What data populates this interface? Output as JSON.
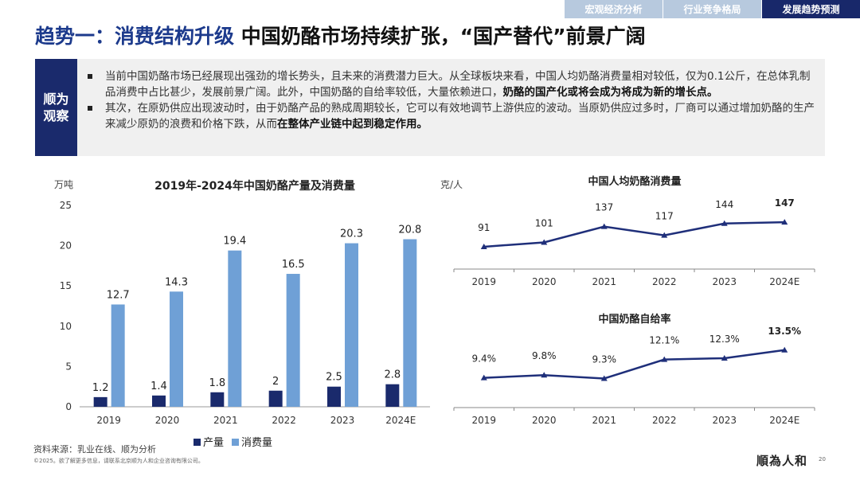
{
  "tabs": [
    {
      "label": "宏观经济分析",
      "active": false
    },
    {
      "label": "行业竞争格局",
      "active": false
    },
    {
      "label": "发展趋势预测",
      "active": true
    }
  ],
  "title": {
    "part1": "趋势一：消费结构升级",
    "part2": "中国奶酪市场持续扩张，“国产替代”前景广阔"
  },
  "observation": {
    "label": "顺为观察",
    "bullets": [
      {
        "text": "当前中国奶酪市场已经展现出强劲的增长势头，且未来的消费潜力巨大。从全球板块来看，中国人均奶酪消费量相对较低，仅为0.1公斤，在总体乳制品消费中占比甚少，发展前景广阔。此外，中国奶酪的自给率较低，大量依赖进口，",
        "bold": "奶酪的国产化或将会成为将成为新的增长点。"
      },
      {
        "text": "其次，在原奶供应出现波动时，由于奶酪产品的熟成周期较长，它可以有效地调节上游供应的波动。当原奶供应过多时，厂商可以通过增加奶酪的生产来减少原奶的浪费和价格下跌，从而",
        "bold": "在整体产业链中起到稳定作用。"
      }
    ]
  },
  "colors": {
    "navy": "#1a2a6c",
    "light_blue": "#6fa0d6",
    "line": "#1f2f7a"
  },
  "chart_data": [
    {
      "type": "bar",
      "title": "2019年-2024年中国奶酪产量及消费量",
      "ylabel": "万吨",
      "ylim": [
        0,
        25
      ],
      "yticks": [
        0,
        5,
        10,
        15,
        20,
        25
      ],
      "categories": [
        "2019",
        "2020",
        "2021",
        "2022",
        "2023",
        "2024E"
      ],
      "series": [
        {
          "name": "产量",
          "values": [
            1.2,
            1.4,
            1.8,
            2,
            2.5,
            2.8
          ],
          "labels": [
            "1.2",
            "1.4",
            "1.8",
            "2",
            "2.5",
            "2.8"
          ]
        },
        {
          "name": "消费量",
          "values": [
            12.7,
            14.3,
            19.4,
            16.5,
            20.3,
            20.8
          ],
          "labels": [
            "12.7",
            "14.3",
            "19.4",
            "16.5",
            "20.3",
            "20.8"
          ]
        }
      ],
      "legend": "bottom"
    },
    {
      "type": "line",
      "title": "中国人均奶酪消费量",
      "ylabel": "克/人",
      "ylim": [
        40,
        200
      ],
      "categories": [
        "2019",
        "2020",
        "2021",
        "2022",
        "2023",
        "2024E"
      ],
      "values": [
        91,
        101,
        137,
        117,
        144,
        147
      ],
      "labels": [
        "91",
        "101",
        "137",
        "117",
        "144",
        "147"
      ]
    },
    {
      "type": "line",
      "title": "中国奶酪自给率",
      "ylabel": "",
      "ylim": [
        5,
        16
      ],
      "categories": [
        "2019",
        "2020",
        "2021",
        "2022",
        "2023",
        "2024E"
      ],
      "values": [
        9.4,
        9.8,
        9.3,
        12.1,
        12.3,
        13.5
      ],
      "labels": [
        "9.4%",
        "9.8%",
        "9.3%",
        "12.1%",
        "12.3%",
        "13.5%"
      ]
    }
  ],
  "footer": {
    "source": "资料来源：乳业在线、顺为分析",
    "copyright": "©2025。欲了解更多信息，请联系北京顺为人和企业咨询有限公司。",
    "logo": "順為人和",
    "page": "20"
  }
}
